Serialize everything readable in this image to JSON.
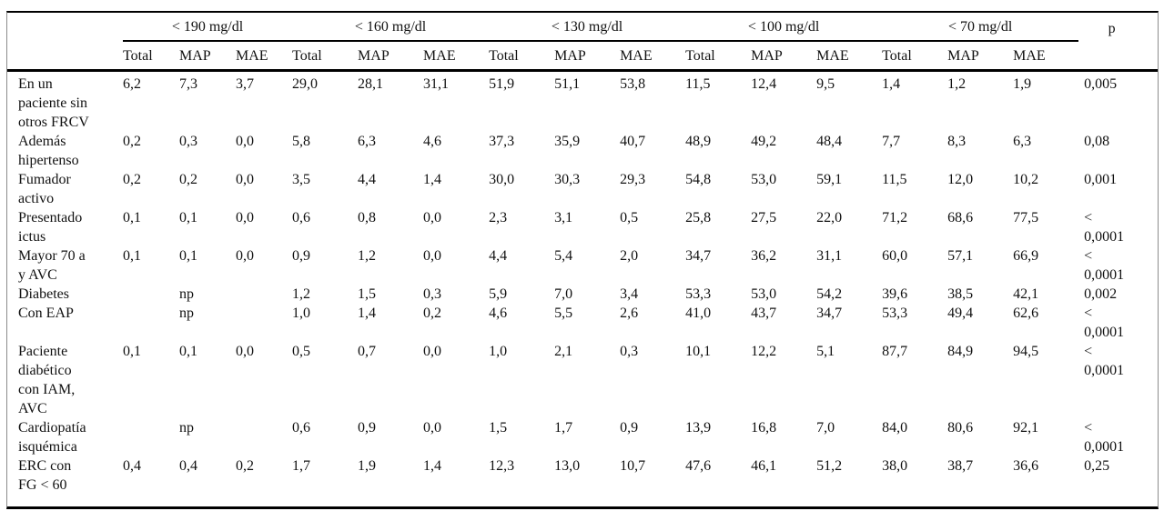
{
  "table": {
    "p_column_label": "p",
    "groups": [
      {
        "label": "< 190 mg/dl"
      },
      {
        "label": "< 160 mg/dl"
      },
      {
        "label": "< 130 mg/dl"
      },
      {
        "label": "< 100 mg/dl"
      },
      {
        "label": "< 70 mg/dl"
      }
    ],
    "subcolumns": [
      "Total",
      "MAP",
      "MAE"
    ],
    "not_applicable_marker": "np",
    "rows": [
      {
        "label": "En un paciente sin otros FRCV",
        "values": [
          "6,2",
          "7,3",
          "3,7",
          "29,0",
          "28,1",
          "31,1",
          "51,9",
          "51,1",
          "53,8",
          "11,5",
          "12,4",
          "9,5",
          "1,4",
          "1,2",
          "1,9"
        ],
        "p": "0,005"
      },
      {
        "label": "Además hipertenso",
        "values": [
          "0,2",
          "0,3",
          "0,0",
          "5,8",
          "6,3",
          "4,6",
          "37,3",
          "35,9",
          "40,7",
          "48,9",
          "49,2",
          "48,4",
          "7,7",
          "8,3",
          "6,3"
        ],
        "p": "0,08"
      },
      {
        "label": "Fumador activo",
        "values": [
          "0,2",
          "0,2",
          "0,0",
          "3,5",
          "4,4",
          "1,4",
          "30,0",
          "30,3",
          "29,3",
          "54,8",
          "53,0",
          "59,1",
          "11,5",
          "12,0",
          "10,2"
        ],
        "p": "0,001"
      },
      {
        "label": "Presentado ictus",
        "values": [
          "0,1",
          "0,1",
          "0,0",
          "0,6",
          "0,8",
          "0,0",
          "2,3",
          "3,1",
          "0,5",
          "25,8",
          "27,5",
          "22,0",
          "71,2",
          "68,6",
          "77,5"
        ],
        "p": "< 0,0001"
      },
      {
        "label": "Mayor 70 a y AVC",
        "values": [
          "0,1",
          "0,1",
          "0,0",
          "0,9",
          "1,2",
          "0,0",
          "4,4",
          "5,4",
          "2,0",
          "34,7",
          "36,2",
          "31,1",
          "60,0",
          "57,1",
          "66,9"
        ],
        "p": "< 0,0001"
      },
      {
        "label": "Diabetes",
        "values": [
          "",
          "np",
          "",
          "1,2",
          "1,5",
          "0,3",
          "5,9",
          "7,0",
          "3,4",
          "53,3",
          "53,0",
          "54,2",
          "39,6",
          "38,5",
          "42,1"
        ],
        "p": "0,002"
      },
      {
        "label": "Con EAP",
        "values": [
          "",
          "np",
          "",
          "1,0",
          "1,4",
          "0,2",
          "4,6",
          "5,5",
          "2,6",
          "41,0",
          "43,7",
          "34,7",
          "53,3",
          "49,4",
          "62,6"
        ],
        "p": "< 0,0001"
      },
      {
        "label": "Paciente diabético con IAM, AVC",
        "values": [
          "0,1",
          "0,1",
          "0,0",
          "0,5",
          "0,7",
          "0,0",
          "1,0",
          "2,1",
          "0,3",
          "10,1",
          "12,2",
          "5,1",
          "87,7",
          "84,9",
          "94,5"
        ],
        "p": "< 0,0001"
      },
      {
        "label": "Cardiopatía isquémica",
        "values": [
          "",
          "np",
          "",
          "0,6",
          "0,9",
          "0,0",
          "1,5",
          "1,7",
          "0,9",
          "13,9",
          "16,8",
          "7,0",
          "84,0",
          "80,6",
          "92,1"
        ],
        "p": "< 0,0001"
      },
      {
        "label": "ERC con FG < 60",
        "values": [
          "0,4",
          "0,4",
          "0,2",
          "1,7",
          "1,9",
          "1,4",
          "12,3",
          "13,0",
          "10,7",
          "47,6",
          "46,1",
          "51,2",
          "38,0",
          "38,7",
          "36,6"
        ],
        "p": "0,25"
      }
    ]
  },
  "colors": {
    "rule": "#000000",
    "frame_border": "#8c8c8c",
    "text": "#111111",
    "background": "#ffffff"
  }
}
